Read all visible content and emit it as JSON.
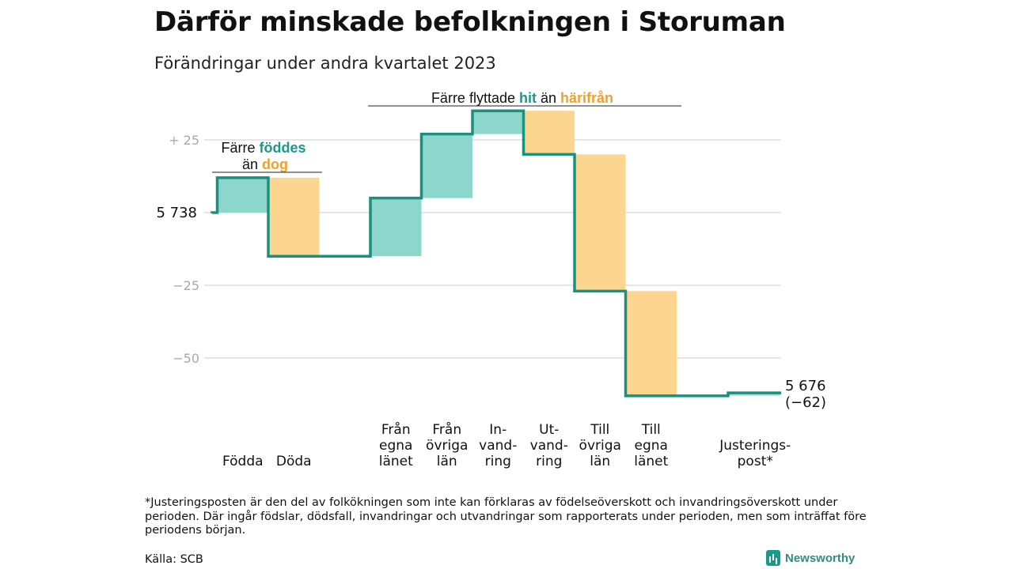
{
  "title": "Därför minskade befolkningen i Storuman",
  "subtitle": "Förändringar under andra kvartalet 2023",
  "footnote": "*Justeringsposten är den del av folkökningen som inte kan förklaras av födelseöverskott och invandringsöverskott under perioden. Där ingår födslar, dödsfall, invandringar och utvandringar som rapporterats under perioden, men som inträffat före periodens början.",
  "source": "Källa: SCB",
  "brand": "Newsworthy",
  "colors": {
    "increase": "#8dd6cc",
    "decrease": "#fcd68f",
    "line": "#1a9080",
    "accent_teal": "#1a9a8a",
    "accent_orange": "#f2a02b"
  },
  "chart_data": {
    "type": "waterfall",
    "start_value": 5738,
    "end_value": 5676,
    "end_change": "(−62)",
    "start_label": "5  738",
    "end_label": "5 676",
    "y_ticks": [
      {
        "value": 25,
        "label": "+  25"
      },
      {
        "value": 0,
        "label": ""
      },
      {
        "value": -25,
        "label": "−25"
      },
      {
        "value": -50,
        "label": "−50"
      }
    ],
    "ylim": [
      -62,
      35
    ],
    "categories": [
      {
        "label": "Födda",
        "change": 12,
        "group": 0
      },
      {
        "label": "Döda",
        "change": -27,
        "group": 0
      },
      {
        "label": "Från\negna\nlänet",
        "change": 20,
        "group": 1
      },
      {
        "label": "Från\növriga\nlän",
        "change": 22,
        "group": 1
      },
      {
        "label": "In-\nvand-\nring",
        "change": 8,
        "group": 1
      },
      {
        "label": "Ut-\nvand-\nring",
        "change": -15,
        "group": 1
      },
      {
        "label": "Till\növriga\nlän",
        "change": -47,
        "group": 1
      },
      {
        "label": "Till\negna\nlänet",
        "change": -36,
        "group": 1
      },
      {
        "label": "Justerings-\npost*",
        "change": 1,
        "group": 2
      }
    ],
    "annotations": [
      {
        "line1_prefix": "Färre ",
        "line1_highlight": "föddes",
        "line2_prefix": "än ",
        "line2_highlight": "dog"
      },
      {
        "prefix": "Färre flyttade ",
        "highlight1": "hit",
        "middle": " än ",
        "highlight2": "härifrån"
      }
    ]
  }
}
